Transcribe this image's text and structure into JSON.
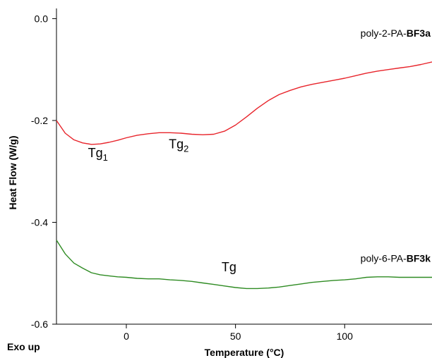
{
  "chart_data": {
    "type": "line",
    "xlabel": "Temperature (°C)",
    "ylabel": "Heat Flow (W/g)",
    "corner_note": "Exo up",
    "xlim": [
      -32,
      140
    ],
    "ylim": [
      -0.6,
      0.02
    ],
    "x_ticks": [
      {
        "value": 0,
        "label": "0"
      },
      {
        "value": 50,
        "label": "50"
      },
      {
        "value": 100,
        "label": "100"
      }
    ],
    "y_ticks": [
      {
        "value": 0.0,
        "label": "0.0"
      },
      {
        "value": -0.2,
        "label": "-0.2"
      },
      {
        "value": -0.4,
        "label": "-0.4"
      },
      {
        "value": -0.6,
        "label": "-0.6"
      }
    ],
    "grid": false,
    "series": [
      {
        "name_prefix": "poly-2-PA-",
        "name_bold": "BF3a",
        "color": "#e8242b",
        "x": [
          -32,
          -28,
          -24,
          -20,
          -16,
          -12,
          -8,
          -4,
          0,
          5,
          10,
          15,
          20,
          25,
          30,
          35,
          40,
          45,
          50,
          55,
          60,
          65,
          70,
          75,
          80,
          85,
          90,
          95,
          100,
          105,
          110,
          115,
          120,
          125,
          130,
          135,
          140
        ],
        "y": [
          -0.2,
          -0.225,
          -0.238,
          -0.244,
          -0.247,
          -0.246,
          -0.243,
          -0.239,
          -0.234,
          -0.229,
          -0.226,
          -0.224,
          -0.224,
          -0.225,
          -0.227,
          -0.228,
          -0.227,
          -0.221,
          -0.209,
          -0.193,
          -0.176,
          -0.161,
          -0.149,
          -0.141,
          -0.134,
          -0.129,
          -0.125,
          -0.121,
          -0.117,
          -0.112,
          -0.107,
          -0.103,
          -0.1,
          -0.097,
          -0.094,
          -0.09,
          -0.085
        ]
      },
      {
        "name_prefix": "poly-6-PA-",
        "name_bold": "BF3k",
        "color": "#2e8b22",
        "x": [
          -32,
          -28,
          -24,
          -20,
          -16,
          -12,
          -8,
          -4,
          0,
          5,
          10,
          15,
          20,
          25,
          30,
          35,
          40,
          45,
          50,
          55,
          60,
          65,
          70,
          75,
          80,
          85,
          90,
          95,
          100,
          105,
          110,
          115,
          120,
          125,
          130,
          135,
          140
        ],
        "y": [
          -0.435,
          -0.462,
          -0.48,
          -0.49,
          -0.499,
          -0.503,
          -0.505,
          -0.507,
          -0.508,
          -0.51,
          -0.511,
          -0.511,
          -0.513,
          -0.514,
          -0.516,
          -0.519,
          -0.522,
          -0.525,
          -0.528,
          -0.53,
          -0.53,
          -0.529,
          -0.527,
          -0.524,
          -0.521,
          -0.518,
          -0.516,
          -0.514,
          -0.513,
          -0.511,
          -0.508,
          -0.507,
          -0.507,
          -0.508,
          -0.508,
          -0.508,
          -0.508
        ]
      }
    ],
    "annotations": [
      {
        "base": "Tg",
        "sub": "1",
        "x": -13,
        "y": -0.272
      },
      {
        "base": "Tg",
        "sub": "2",
        "x": 24,
        "y": -0.255
      },
      {
        "base": "Tg",
        "sub": "",
        "x": 47,
        "y": -0.496
      }
    ]
  }
}
